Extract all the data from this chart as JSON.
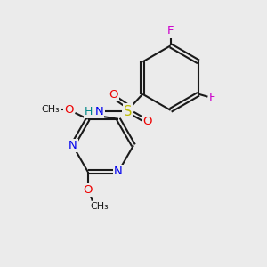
{
  "background_color": "#ebebeb",
  "bond_color": "#1a1a1a",
  "atom_colors": {
    "C": "#1a1a1a",
    "N": "#0000ee",
    "O": "#ee0000",
    "S": "#bbbb00",
    "F": "#cc00cc",
    "H": "#008888"
  },
  "figsize": [
    3.0,
    3.0
  ],
  "dpi": 100
}
